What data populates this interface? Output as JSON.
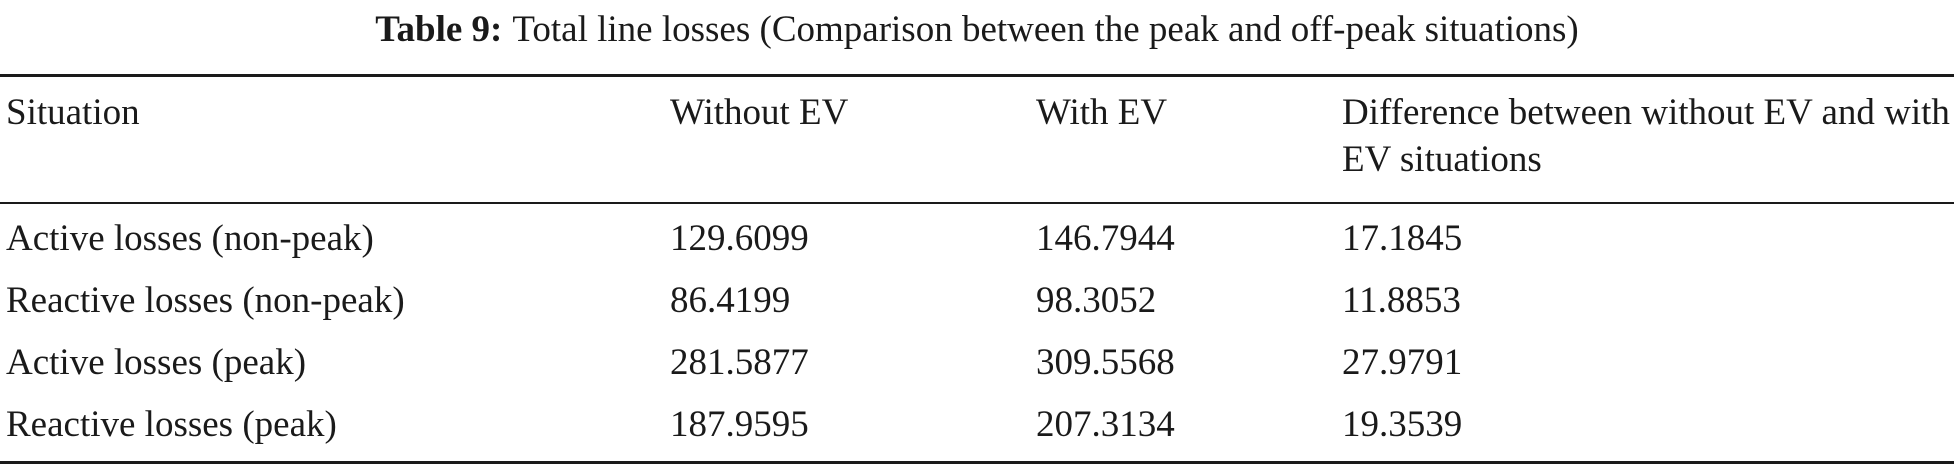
{
  "caption": {
    "label": "Table 9:",
    "text": "Total line losses (Comparison between the peak and off-peak situations)"
  },
  "table": {
    "headers": [
      "Situation",
      "Without EV",
      "With EV",
      "Difference between without EV and with EV situations"
    ],
    "rows": [
      [
        "Active losses (non-peak)",
        "129.6099",
        "146.7944",
        "17.1845"
      ],
      [
        "Reactive losses (non-peak)",
        "86.4199",
        "98.3052",
        "11.8853"
      ],
      [
        "Active losses (peak)",
        "281.5877",
        "309.5568",
        "27.9791"
      ],
      [
        "Reactive losses (peak)",
        "187.9595",
        "207.3134",
        "19.3539"
      ]
    ]
  }
}
